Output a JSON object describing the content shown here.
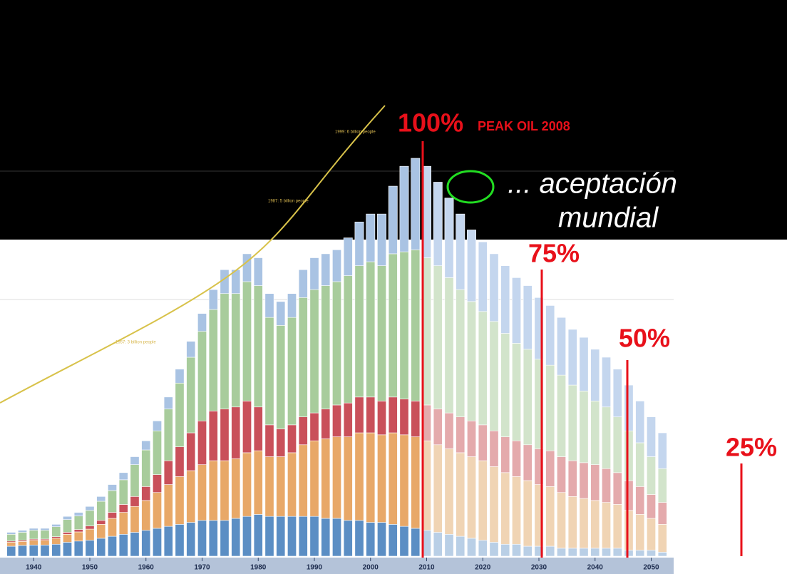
{
  "chart_data": {
    "type": "bar",
    "stacked": true,
    "x": [
      1936,
      1938,
      1940,
      1942,
      1944,
      1946,
      1948,
      1950,
      1952,
      1954,
      1956,
      1958,
      1960,
      1962,
      1964,
      1966,
      1968,
      1970,
      1972,
      1974,
      1976,
      1978,
      1980,
      1982,
      1984,
      1986,
      1988,
      1990,
      1992,
      1994,
      1996,
      1998,
      2000,
      2002,
      2004,
      2006,
      2008,
      2010,
      2012,
      2014,
      2016,
      2018,
      2020,
      2022,
      2024,
      2026,
      2028,
      2030,
      2032,
      2034,
      2036,
      2038,
      2040,
      2042,
      2044,
      2046,
      2048,
      2050,
      2052
    ],
    "xlim": [
      1934,
      2054
    ],
    "xticks": [
      1940,
      1950,
      1960,
      1970,
      1980,
      1990,
      2000,
      2010,
      2020,
      2030,
      2040,
      2050
    ],
    "ylim": [
      0,
      100
    ],
    "forecast_from": 2009,
    "series": [
      {
        "color": "#5b8ec4",
        "forecast_color": "#b9cfe6",
        "values": [
          2.5,
          2.7,
          2.8,
          2.8,
          3,
          3.5,
          3.8,
          4,
          4.5,
          5,
          5.5,
          6,
          6.5,
          7,
          7.5,
          8,
          8.5,
          9,
          9,
          9,
          9.5,
          10,
          10.5,
          10,
          10,
          10,
          10,
          10,
          9.5,
          9.5,
          9,
          9,
          8.5,
          8.5,
          8,
          7.5,
          7,
          6.5,
          6,
          5.5,
          5,
          4.5,
          4,
          3.5,
          3,
          3,
          2.5,
          2.5,
          2.5,
          2,
          2,
          2,
          2,
          2,
          2,
          1.5,
          1.5,
          1.5,
          1
        ]
      },
      {
        "color": "#e8a868",
        "forecast_color": "#f0d4b4",
        "values": [
          1,
          1,
          1.2,
          1.2,
          1.5,
          2,
          2.3,
          2.8,
          3.5,
          4.5,
          5.5,
          6.5,
          7.5,
          9,
          10.5,
          12,
          13,
          14,
          15,
          15,
          15,
          16,
          16,
          15,
          15,
          16,
          18,
          19,
          20,
          20.5,
          21,
          22,
          22.5,
          22,
          23,
          23,
          23,
          22.5,
          22,
          21.5,
          21,
          20.5,
          20,
          19,
          18,
          17,
          16.5,
          15.5,
          15,
          14,
          13,
          12.5,
          12,
          11.5,
          11,
          10,
          9,
          8,
          7
        ]
      },
      {
        "color": "#c9505a",
        "forecast_color": "#e4aaac",
        "values": [
          0.3,
          0.3,
          0.3,
          0.3,
          0.4,
          0.5,
          0.6,
          0.8,
          1,
          1.5,
          2,
          2.5,
          3.5,
          4.5,
          6,
          7.5,
          9.5,
          11,
          12.5,
          13,
          13,
          13,
          11,
          8,
          7,
          7,
          7,
          7,
          7.5,
          8,
          8.5,
          9,
          9,
          8.5,
          9,
          9,
          9,
          9,
          9,
          9,
          9,
          9,
          9,
          9,
          9,
          9,
          9,
          9,
          9,
          9,
          9,
          9,
          9,
          8.5,
          8,
          7.5,
          7,
          6,
          5.5
        ]
      },
      {
        "color": "#a8cc9c",
        "forecast_color": "#d2e4cb",
        "values": [
          1.7,
          2,
          2.2,
          2.2,
          2.5,
          3.2,
          3.4,
          3.9,
          4.8,
          5.5,
          6.2,
          8,
          9.2,
          11,
          13,
          16,
          19,
          22.5,
          25.5,
          29,
          28.5,
          30,
          30.5,
          27,
          26,
          27,
          30,
          31,
          31,
          31,
          32,
          33,
          34,
          34,
          36,
          37,
          38,
          37,
          36,
          34,
          32,
          30,
          28.5,
          27.5,
          26,
          24.5,
          24,
          22.5,
          21.5,
          20.5,
          19,
          18,
          16,
          15.5,
          14,
          12.5,
          11,
          9.5,
          8.5
        ]
      },
      {
        "color": "#a9c3e3",
        "forecast_color": "#c4d6ee",
        "values": [
          0.5,
          0.5,
          0.5,
          0.5,
          0.6,
          0.8,
          0.9,
          1,
          1.2,
          1.5,
          1.8,
          2,
          2.3,
          2.5,
          3,
          3.5,
          4,
          4.5,
          5,
          6,
          6,
          7,
          7,
          6,
          6,
          6,
          7,
          8,
          8,
          8,
          9.5,
          11,
          12,
          13,
          17,
          21.5,
          23,
          23,
          21,
          20,
          19,
          18,
          17.5,
          17,
          17,
          16.5,
          16,
          15.5,
          15,
          14.5,
          14,
          13.5,
          13,
          12.5,
          12,
          11.5,
          10.5,
          10,
          9
        ]
      }
    ],
    "annotations": [
      "100%",
      "PEAK OIL 2008",
      "... aceptación",
      "mundial",
      "75%",
      "50%",
      "25%",
      "1999: 6 billion people",
      "1987: 5 billion people",
      "1957: 3 billion people"
    ]
  }
}
